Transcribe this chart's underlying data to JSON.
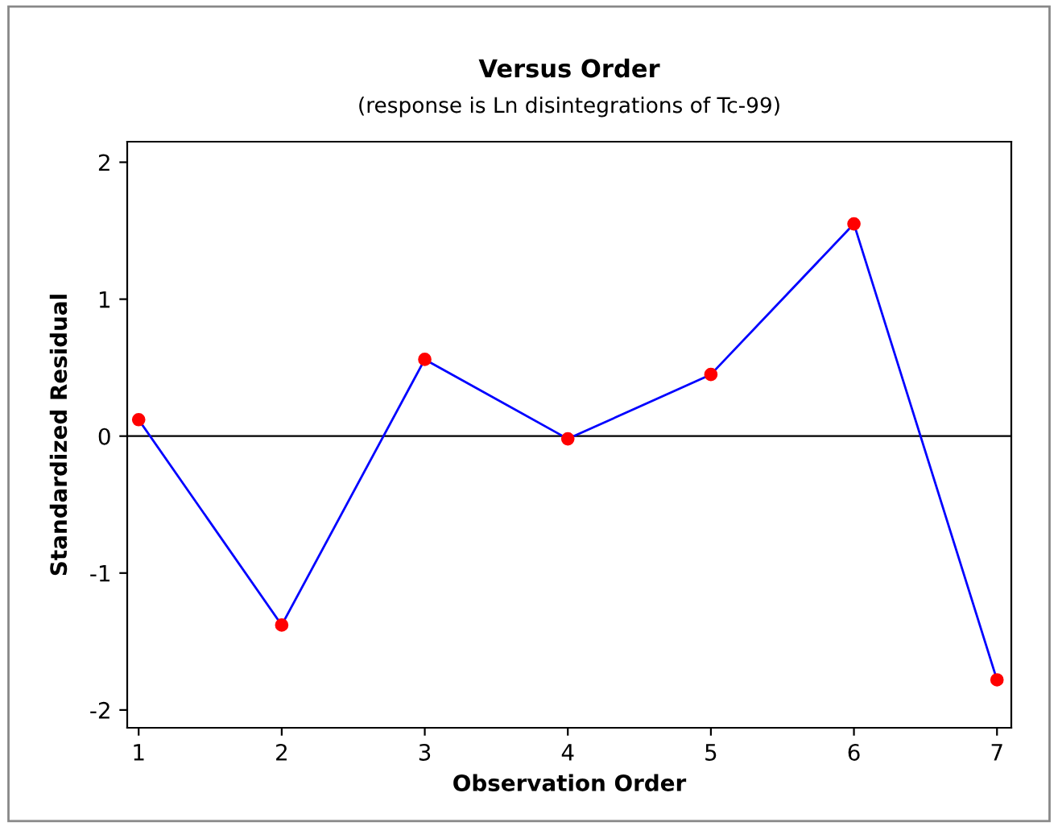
{
  "chart_data": {
    "type": "line",
    "title": "Versus Order",
    "subtitle": "(response is Ln disintegrations of Tc-99)",
    "xlabel": "Observation Order",
    "ylabel": "Standardized Residual",
    "x": [
      1,
      2,
      3,
      4,
      5,
      6,
      7
    ],
    "series": [
      {
        "color": "#0000ff",
        "colors": [
          "#ff0000",
          "#ff0000",
          "#ff0000",
          "#ff0000",
          "#ff0000",
          "#ff0000",
          "#ff0000"
        ],
        "values": [
          0.12,
          -1.38,
          0.56,
          -0.02,
          0.45,
          1.55,
          -1.78
        ]
      }
    ],
    "marker": "circle",
    "xlim": [
      0.92,
      7.1
    ],
    "xticks": [
      1,
      2,
      3,
      4,
      5,
      6,
      7
    ],
    "ylim": [
      -2.13,
      2.15
    ],
    "yticks": [
      -2,
      -1,
      0,
      1,
      2
    ],
    "ref_lines": [
      {
        "axis": "y",
        "value": 0,
        "color": "#000000"
      }
    ],
    "grid": false,
    "legend": false
  }
}
